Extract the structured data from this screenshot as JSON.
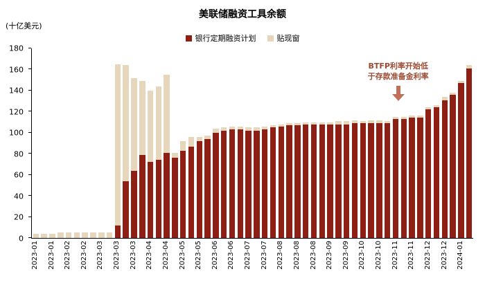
{
  "colors": {
    "btfp": "#8e1f15",
    "dw": "#e6d7bc",
    "annotation_text": "#9d4a33",
    "arrow": "#bf7058",
    "axis": "#000000"
  },
  "annotation": {
    "line1": "BTFP利率开始低",
    "line2": "于存款准备金利率"
  },
  "chart_data": {
    "type": "bar",
    "stacked": true,
    "title": "美联储融资工具余额",
    "ylabel": "(十亿美元)",
    "ylim": [
      0,
      180
    ],
    "yticks": [
      0,
      20,
      40,
      60,
      80,
      100,
      120,
      140,
      160,
      180
    ],
    "tick_every": 2,
    "legend_position": "top-center",
    "grid": false,
    "categories": [
      "2023-01",
      "2023-01",
      "2023-01",
      "2023-01",
      "2023-02",
      "2023-02",
      "2023-02",
      "2023-02",
      "2023-03",
      "2023-03",
      "2023-03",
      "2023-03",
      "2023-03",
      "2023-04",
      "2023-04",
      "2023-04",
      "2023-04",
      "2023-05",
      "2023-05",
      "2023-05",
      "2023-05",
      "2023-05",
      "2023-06",
      "2023-06",
      "2023-06",
      "2023-06",
      "2023-07",
      "2023-07",
      "2023-07",
      "2023-07",
      "2023-08",
      "2023-08",
      "2023-08",
      "2023-08",
      "2023-08",
      "2023-09",
      "2023-09",
      "2023-09",
      "2023-09",
      "2023-10",
      "2023-10",
      "2023-10",
      "2023-10",
      "2023-11",
      "2023-11",
      "2023-11",
      "2023-11",
      "2023-11",
      "2023-12",
      "2023-12",
      "2023-12",
      "2023-12",
      "2024-01",
      "2024-01"
    ],
    "series": [
      {
        "name": "银行定期融资计划",
        "color": "#8e1f15",
        "values": [
          0,
          0,
          0,
          0,
          0,
          0,
          0,
          0,
          0,
          0,
          12,
          54,
          64,
          79,
          72,
          74,
          81,
          76,
          83,
          87,
          92,
          94,
          100,
          102,
          103,
          103,
          102,
          102,
          103,
          105,
          106,
          107,
          107,
          108,
          108,
          108,
          108,
          108,
          108,
          109,
          109,
          109,
          109,
          109,
          113,
          113,
          114,
          114,
          122,
          124,
          131,
          136,
          147,
          161
        ]
      },
      {
        "name": "贴现窗",
        "color": "#e6d7bc",
        "values": [
          4,
          4,
          4,
          5,
          5,
          5,
          5,
          5,
          5,
          5,
          153,
          110,
          88,
          70,
          68,
          70,
          74,
          5,
          9,
          9,
          4,
          3,
          4,
          3,
          3,
          3,
          3,
          3,
          3,
          2,
          2,
          2,
          2,
          2,
          2,
          2,
          2,
          3,
          3,
          3,
          2,
          3,
          3,
          2,
          2,
          2,
          2,
          2,
          2,
          2,
          3,
          2,
          2,
          3
        ]
      }
    ]
  }
}
